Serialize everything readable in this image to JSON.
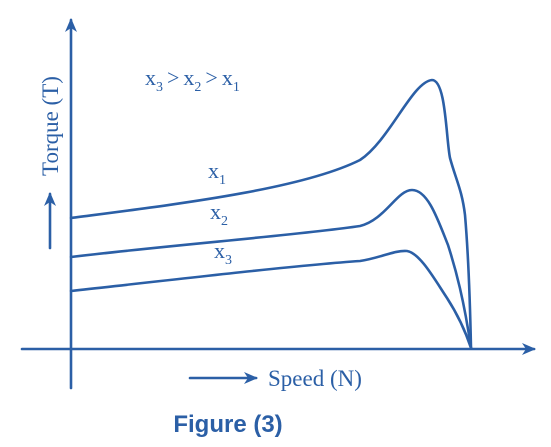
{
  "colors": {
    "ink": "#2b5fa6",
    "caption": "#2b5fa6",
    "background": "#ffffff"
  },
  "axes": {
    "y_label": "Torque (T)",
    "x_label": "Speed (N)"
  },
  "relation": {
    "x3": "x",
    "x3_sub": "3",
    "gt1": ">",
    "x2": "x",
    "x2_sub": "2",
    "gt2": ">",
    "x1": "x",
    "x1_sub": "1"
  },
  "curves": [
    {
      "name_base": "x",
      "name_sub": "1"
    },
    {
      "name_base": "x",
      "name_sub": "2"
    },
    {
      "name_base": "x",
      "name_sub": "3"
    }
  ],
  "caption": "Figure (3)"
}
